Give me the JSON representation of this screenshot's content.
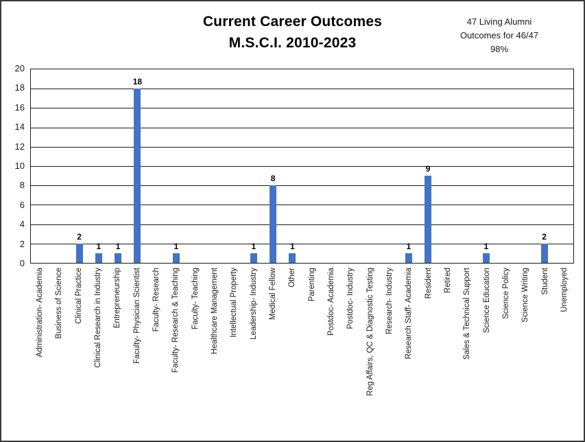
{
  "title": {
    "line1": "Current Career Outcomes",
    "line2": "M.S.C.I. 2010-2023"
  },
  "annotation": {
    "line1": "47 Living Alumni",
    "line2": "Outcomes for 46/47",
    "line3": "98%"
  },
  "colors": {
    "bar": "#4472C4",
    "grid": "#1a1a1a",
    "border": "#3a3a3a"
  },
  "chart_data": {
    "type": "bar",
    "title": "Current Career Outcomes M.S.C.I. 2010-2023",
    "xlabel": "",
    "ylabel": "",
    "ylim": [
      0,
      20
    ],
    "yticks": [
      0,
      2,
      4,
      6,
      8,
      10,
      12,
      14,
      16,
      18,
      20
    ],
    "grid": "horizontal",
    "legend": "none",
    "data_labels": "shown above non-zero bars",
    "categories": [
      "Administration- Academia",
      "Business of Science",
      "Clinical Practice",
      "Clinical Research in Industry",
      "Entrepreneurship",
      "Faculty- Physician Scientist",
      "Faculty- Research",
      "Faculty- Research & Teaching",
      "Faculty- Teaching",
      "Healthcare Management",
      "Intellectual Property",
      "Leadership- Industry",
      "Medical Fellow",
      "Other",
      "Parenting",
      "Postdoc- Academia",
      "Postdoc- Industry",
      "Reg Affairs, QC & Diagnostic Testing",
      "Research- Industry",
      "Research Staff- Academia",
      "Resident",
      "Retired",
      "Sales & Technical Support",
      "Science Education",
      "Science Policy",
      "Science Writing",
      "Student",
      "Unemployed"
    ],
    "values": [
      0,
      0,
      2,
      1,
      1,
      18,
      0,
      1,
      0,
      0,
      0,
      1,
      8,
      1,
      0,
      0,
      0,
      0,
      0,
      1,
      9,
      0,
      0,
      1,
      0,
      0,
      2,
      0
    ]
  }
}
